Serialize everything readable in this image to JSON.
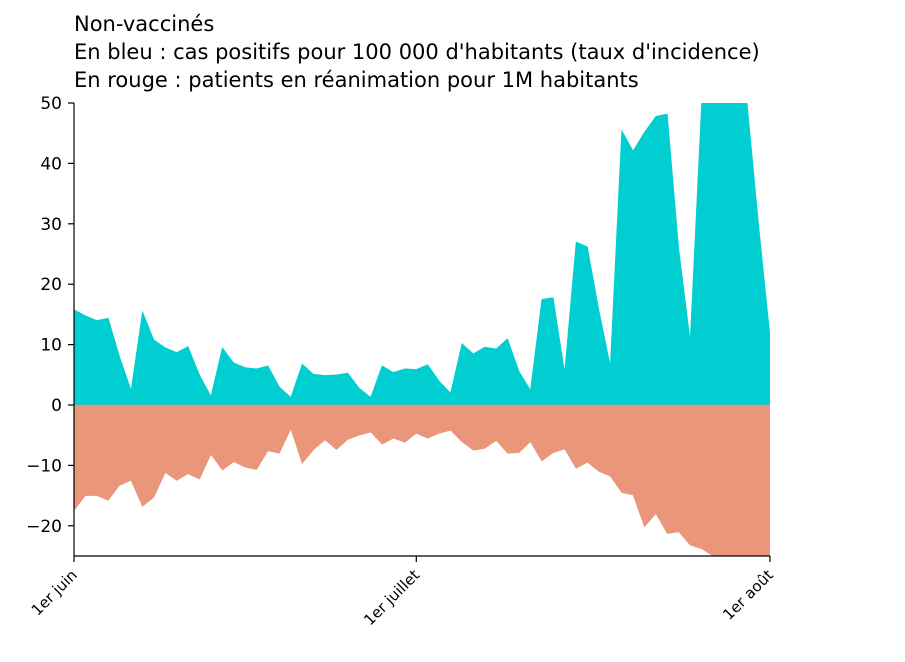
{
  "title_lines": [
    "Non-vaccinés",
    "En bleu : cas positifs pour 100 000 d'habitants (taux d'incidence)",
    "En rouge : patients en réanimation pour 1M habitants"
  ],
  "chart_data": {
    "type": "area",
    "title": "Non-vaccinés",
    "xlabel": "",
    "ylabel": "",
    "ylim": [
      -25,
      50
    ],
    "yticks": [
      -20,
      -10,
      0,
      10,
      20,
      30,
      40,
      50
    ],
    "ytick_labels": [
      "−20",
      "−10",
      "0",
      "10",
      "20",
      "30",
      "40",
      "50"
    ],
    "xlim": [
      0,
      61
    ],
    "xticks": [
      0,
      30,
      61
    ],
    "xtick_labels": [
      "1er juin",
      "1er juillet",
      "1er août"
    ],
    "colors": {
      "positive": "#00ced1",
      "negative": "#e9967a"
    },
    "series": [
      {
        "name": "cas positifs pour 100 000 habitants (taux d'incidence)",
        "color": "#00ced1",
        "x": [
          0,
          1,
          2,
          3,
          4,
          5,
          6,
          7,
          8,
          9,
          10,
          11,
          12,
          13,
          14,
          15,
          16,
          17,
          18,
          19,
          20,
          21,
          22,
          23,
          24,
          25,
          26,
          27,
          28,
          29,
          30,
          31,
          32,
          33,
          34,
          35,
          36,
          37,
          38,
          39,
          40,
          41,
          42,
          43,
          44,
          45,
          46,
          47,
          48,
          49,
          50,
          51,
          52,
          53,
          54,
          55,
          56,
          57,
          58,
          59,
          60,
          61
        ],
        "values": [
          15.8,
          14.8,
          14.0,
          14.4,
          8.0,
          2.5,
          15.5,
          10.8,
          9.5,
          8.7,
          9.7,
          5.0,
          1.5,
          9.5,
          7.0,
          6.2,
          6.0,
          6.5,
          3.0,
          1.3,
          6.8,
          5.1,
          4.9,
          5.0,
          5.3,
          2.8,
          1.3,
          6.5,
          5.4,
          6.0,
          5.9,
          6.7,
          4.0,
          2.0,
          10.2,
          8.5,
          9.6,
          9.3,
          11.0,
          5.6,
          2.5,
          17.5,
          17.8,
          5.5,
          27.0,
          26.2,
          15.8,
          6.6,
          45.5,
          42.1,
          45.2,
          47.8,
          48.2,
          26.0,
          10.8,
          50.0,
          50.0,
          50.0,
          50.0,
          50.0,
          30.0,
          11.5
        ]
      },
      {
        "name": "patients en réanimation pour 1M habitants",
        "color": "#e9967a",
        "x": [
          0,
          1,
          2,
          3,
          4,
          5,
          6,
          7,
          8,
          9,
          10,
          11,
          12,
          13,
          14,
          15,
          16,
          17,
          18,
          19,
          20,
          21,
          22,
          23,
          24,
          25,
          26,
          27,
          28,
          29,
          30,
          31,
          32,
          33,
          34,
          35,
          36,
          37,
          38,
          39,
          40,
          41,
          42,
          43,
          44,
          45,
          46,
          47,
          48,
          49,
          50,
          51,
          52,
          53,
          54,
          55,
          56,
          57,
          58,
          59,
          60,
          61
        ],
        "values": [
          -17.5,
          -15.0,
          -15.0,
          -15.8,
          -13.3,
          -12.5,
          -16.8,
          -15.3,
          -11.2,
          -12.5,
          -11.4,
          -12.3,
          -8.2,
          -10.8,
          -9.4,
          -10.3,
          -10.7,
          -7.6,
          -8.0,
          -4.0,
          -9.7,
          -7.4,
          -5.8,
          -7.4,
          -5.7,
          -5.0,
          -4.5,
          -6.5,
          -5.5,
          -6.2,
          -4.7,
          -5.5,
          -4.7,
          -4.2,
          -6.1,
          -7.5,
          -7.2,
          -5.9,
          -8.0,
          -7.9,
          -6.1,
          -9.3,
          -7.9,
          -7.3,
          -10.5,
          -9.5,
          -11.0,
          -11.8,
          -14.5,
          -14.9,
          -20.2,
          -18.0,
          -21.3,
          -21.0,
          -23.2,
          -23.8,
          -25.0,
          -25.0,
          -25.0,
          -25.0,
          -25.0,
          -25.0
        ]
      }
    ]
  }
}
